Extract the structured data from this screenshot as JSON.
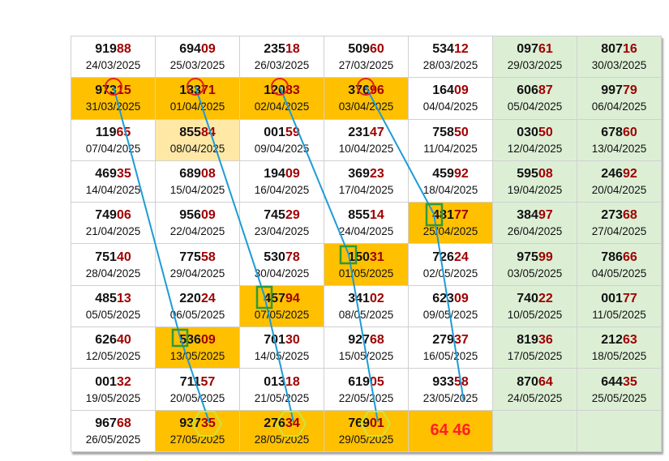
{
  "colors": {
    "highlight": "#ffc000",
    "highlight_light": "#ffe8a6",
    "weekend_column": "#dcefd5",
    "trailing_digits": "#a00000",
    "prediction_text": "#ff2020",
    "trend_line": "#1e9bd7",
    "circle_marker": "#e02020",
    "square_marker": "#2e9a3a",
    "hexagon_marker": "#c8e63c"
  },
  "rows": [
    [
      {
        "lead": "919",
        "tail": "88",
        "date": "24/03/2025"
      },
      {
        "lead": "694",
        "tail": "09",
        "date": "25/03/2025"
      },
      {
        "lead": "235",
        "tail": "18",
        "date": "26/03/2025"
      },
      {
        "lead": "509",
        "tail": "60",
        "date": "27/03/2025"
      },
      {
        "lead": "534",
        "tail": "12",
        "date": "28/03/2025"
      },
      {
        "lead": "097",
        "tail": "61",
        "date": "29/03/2025",
        "weekend": true
      },
      {
        "lead": "807",
        "tail": "16",
        "date": "30/03/2025",
        "weekend": true
      }
    ],
    [
      {
        "lead": "973",
        "tail": "15",
        "date": "31/03/2025",
        "hl": true
      },
      {
        "lead": "133",
        "tail": "71",
        "date": "01/04/2025",
        "hl": true
      },
      {
        "lead": "120",
        "tail": "83",
        "date": "02/04/2025",
        "hl": true
      },
      {
        "lead": "376",
        "tail": "96",
        "date": "03/04/2025",
        "hl": true
      },
      {
        "lead": "164",
        "tail": "09",
        "date": "04/04/2025"
      },
      {
        "lead": "606",
        "tail": "87",
        "date": "05/04/2025",
        "weekend": true
      },
      {
        "lead": "997",
        "tail": "79",
        "date": "06/04/2025",
        "weekend": true
      }
    ],
    [
      {
        "lead": "119",
        "tail": "65",
        "date": "07/04/2025"
      },
      {
        "lead": "855",
        "tail": "84",
        "date": "08/04/2025",
        "hl_light": true
      },
      {
        "lead": "001",
        "tail": "59",
        "date": "09/04/2025"
      },
      {
        "lead": "231",
        "tail": "47",
        "date": "10/04/2025"
      },
      {
        "lead": "758",
        "tail": "50",
        "date": "11/04/2025"
      },
      {
        "lead": "030",
        "tail": "50",
        "date": "12/04/2025",
        "weekend": true
      },
      {
        "lead": "678",
        "tail": "60",
        "date": "13/04/2025",
        "weekend": true
      }
    ],
    [
      {
        "lead": "469",
        "tail": "35",
        "date": "14/04/2025"
      },
      {
        "lead": "689",
        "tail": "08",
        "date": "15/04/2025"
      },
      {
        "lead": "194",
        "tail": "09",
        "date": "16/04/2025"
      },
      {
        "lead": "369",
        "tail": "23",
        "date": "17/04/2025"
      },
      {
        "lead": "459",
        "tail": "92",
        "date": "18/04/2025"
      },
      {
        "lead": "595",
        "tail": "08",
        "date": "19/04/2025",
        "weekend": true
      },
      {
        "lead": "246",
        "tail": "92",
        "date": "20/04/2025",
        "weekend": true
      }
    ],
    [
      {
        "lead": "749",
        "tail": "06",
        "date": "21/04/2025"
      },
      {
        "lead": "956",
        "tail": "09",
        "date": "22/04/2025"
      },
      {
        "lead": "745",
        "tail": "29",
        "date": "23/04/2025"
      },
      {
        "lead": "855",
        "tail": "14",
        "date": "24/04/2025"
      },
      {
        "lead": "481",
        "tail": "77",
        "date": "25/04/2025",
        "hl": true
      },
      {
        "lead": "384",
        "tail": "97",
        "date": "26/04/2025",
        "weekend": true
      },
      {
        "lead": "273",
        "tail": "68",
        "date": "27/04/2025",
        "weekend": true
      }
    ],
    [
      {
        "lead": "751",
        "tail": "40",
        "date": "28/04/2025"
      },
      {
        "lead": "775",
        "tail": "58",
        "date": "29/04/2025"
      },
      {
        "lead": "530",
        "tail": "78",
        "date": "30/04/2025"
      },
      {
        "lead": "150",
        "tail": "31",
        "date": "01/05/2025",
        "hl": true
      },
      {
        "lead": "726",
        "tail": "24",
        "date": "02/05/2025"
      },
      {
        "lead": "975",
        "tail": "99",
        "date": "03/05/2025",
        "weekend": true
      },
      {
        "lead": "786",
        "tail": "66",
        "date": "04/05/2025",
        "weekend": true
      }
    ],
    [
      {
        "lead": "485",
        "tail": "13",
        "date": "05/05/2025"
      },
      {
        "lead": "220",
        "tail": "24",
        "date": "06/05/2025"
      },
      {
        "lead": "457",
        "tail": "94",
        "date": "07/05/2025",
        "hl": true
      },
      {
        "lead": "341",
        "tail": "02",
        "date": "08/05/2025"
      },
      {
        "lead": "623",
        "tail": "09",
        "date": "09/05/2025"
      },
      {
        "lead": "740",
        "tail": "22",
        "date": "10/05/2025",
        "weekend": true
      },
      {
        "lead": "001",
        "tail": "77",
        "date": "11/05/2025",
        "weekend": true
      }
    ],
    [
      {
        "lead": "626",
        "tail": "40",
        "date": "12/05/2025"
      },
      {
        "lead": "536",
        "tail": "09",
        "date": "13/05/2025",
        "hl": true
      },
      {
        "lead": "701",
        "tail": "30",
        "date": "14/05/2025"
      },
      {
        "lead": "927",
        "tail": "68",
        "date": "15/05/2025"
      },
      {
        "lead": "279",
        "tail": "37",
        "date": "16/05/2025"
      },
      {
        "lead": "819",
        "tail": "36",
        "date": "17/05/2025",
        "weekend": true
      },
      {
        "lead": "212",
        "tail": "63",
        "date": "18/05/2025",
        "weekend": true
      }
    ],
    [
      {
        "lead": "001",
        "tail": "32",
        "date": "19/05/2025"
      },
      {
        "lead": "711",
        "tail": "57",
        "date": "20/05/2025"
      },
      {
        "lead": "013",
        "tail": "18",
        "date": "21/05/2025"
      },
      {
        "lead": "619",
        "tail": "05",
        "date": "22/05/2025"
      },
      {
        "lead": "933",
        "tail": "58",
        "date": "23/05/2025"
      },
      {
        "lead": "870",
        "tail": "64",
        "date": "24/05/2025",
        "weekend": true
      },
      {
        "lead": "644",
        "tail": "35",
        "date": "25/05/2025",
        "weekend": true
      }
    ],
    [
      {
        "lead": "967",
        "tail": "68",
        "date": "26/05/2025"
      },
      {
        "lead": "937",
        "tail": "35",
        "date": "27/05/2025",
        "hl": true
      },
      {
        "lead": "276",
        "tail": "34",
        "date": "28/05/2025",
        "hl": true
      },
      {
        "lead": "769",
        "tail": "01",
        "date": "29/05/2025",
        "hl": true
      },
      {
        "prediction": "64 46",
        "hl": true
      },
      {
        "empty": true,
        "weekend": true
      },
      {
        "empty": true,
        "weekend": true
      }
    ]
  ]
}
